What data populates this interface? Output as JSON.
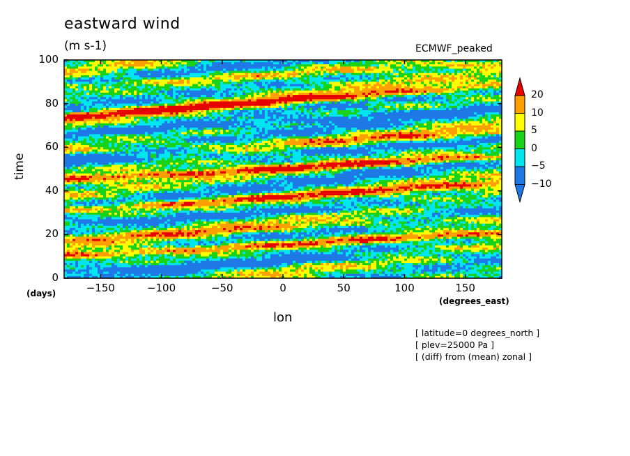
{
  "chart_data": {
    "type": "heatmap",
    "title": "eastward wind",
    "units": "(m s-1)",
    "dataset_label": "ECMWF_peaked",
    "xlabel": "lon",
    "ylabel": "time",
    "x_units": "(degrees_east)",
    "y_units": "(days)",
    "xlim": [
      -180,
      180
    ],
    "ylim": [
      0,
      100
    ],
    "x_ticks": [
      -150,
      -100,
      -50,
      0,
      50,
      100,
      150
    ],
    "y_ticks": [
      0,
      20,
      40,
      60,
      80,
      100
    ],
    "x_tick_labels": [
      "−150",
      "−100",
      "−50",
      "0",
      "50",
      "100",
      "150"
    ],
    "y_tick_labels": [
      "0",
      "20",
      "40",
      "60",
      "80",
      "100"
    ],
    "colorbar": {
      "levels": [
        -10,
        -5,
        0,
        5,
        10,
        20
      ],
      "labels": [
        "20",
        "10",
        "5",
        "0",
        "−5",
        "−10"
      ],
      "colors": [
        "#1e78e6",
        "#00e6f0",
        "#19d219",
        "#ffff00",
        "#ffa000",
        "#e60000"
      ],
      "extend": "both"
    },
    "bands": [
      {
        "value": 20,
        "t_at_lon_minus180": 31,
        "slope_days_per_deg": 0.035
      },
      {
        "value": 20,
        "t_at_lon_minus180": 45,
        "slope_days_per_deg": 0.03
      },
      {
        "value": 20,
        "t_at_lon_minus180": 74,
        "slope_days_per_deg": 0.04
      },
      {
        "value": 20,
        "t_at_lon_minus180": 10,
        "slope_days_per_deg": 0.03
      },
      {
        "value": 10,
        "t_at_lon_minus180": 58,
        "slope_days_per_deg": 0.025
      },
      {
        "value": 10,
        "t_at_lon_minus180": 88,
        "slope_days_per_deg": 0.03
      },
      {
        "value": 10,
        "t_at_lon_minus180": 18,
        "slope_days_per_deg": 0.028
      },
      {
        "value": -10,
        "t_at_lon_minus180": 52,
        "slope_days_per_deg": 0.03
      },
      {
        "value": -10,
        "t_at_lon_minus180": 66,
        "slope_days_per_deg": 0.032
      },
      {
        "value": -10,
        "t_at_lon_minus180": 25,
        "slope_days_per_deg": 0.03
      },
      {
        "value": -10,
        "t_at_lon_minus180": 3,
        "slope_days_per_deg": 0.025
      }
    ],
    "grid": false
  },
  "notes": [
    "[ latitude=0 degrees_north ]",
    "[ plev=25000 Pa ]",
    "[ (diff) from (mean) zonal ]"
  ]
}
